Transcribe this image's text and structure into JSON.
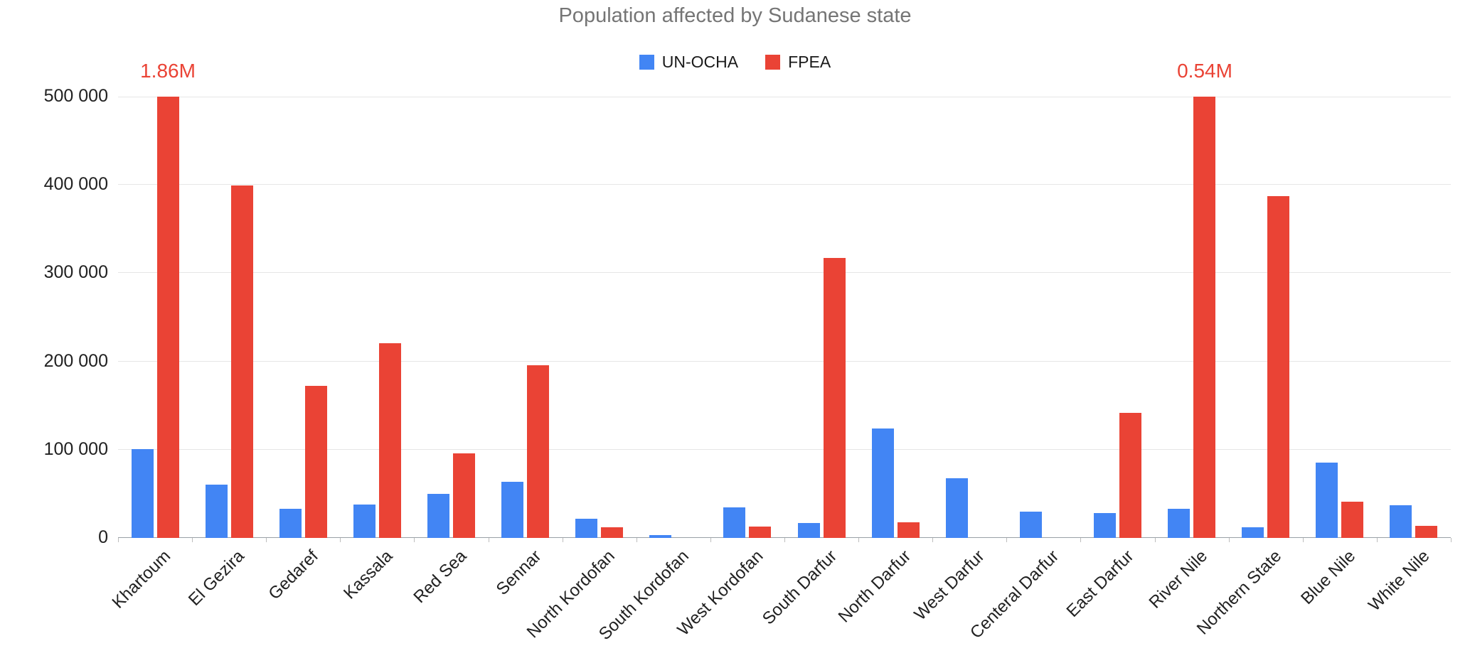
{
  "chart_data": {
    "type": "bar",
    "title": "Population affected by Sudanese state",
    "categories": [
      "Khartoum",
      "El Gezira",
      "Gedaref",
      "Kassala",
      "Red Sea",
      "Sennar",
      "North Kordofan",
      "South Kordofan",
      "West Kordofan",
      "South Darfur",
      "North Darfur",
      "West Darfur",
      "Centeral Darfur",
      "East Darfur",
      "River Nile",
      "Northern State",
      "Blue Nile",
      "White Nile"
    ],
    "series": [
      {
        "name": "UN-OCHA",
        "color": "#4285F4",
        "values": [
          101000,
          60000,
          33000,
          38000,
          50000,
          64000,
          22000,
          3000,
          35000,
          17000,
          124000,
          68000,
          30000,
          28000,
          33000,
          12000,
          85000,
          37000
        ]
      },
      {
        "name": "FPEA",
        "color": "#EA4335",
        "values": [
          1860000,
          399000,
          172000,
          221000,
          96000,
          196000,
          12000,
          0,
          13000,
          317000,
          18000,
          0,
          0,
          142000,
          540000,
          387000,
          41000,
          14000
        ]
      }
    ],
    "annotations": [
      {
        "category": "Khartoum",
        "series": "FPEA",
        "label": "1.86M"
      },
      {
        "category": "River Nile",
        "series": "FPEA",
        "label": "0.54M"
      }
    ],
    "ylim": [
      0,
      500000
    ],
    "yticks": [
      0,
      100000,
      200000,
      300000,
      400000,
      500000
    ],
    "ytick_labels": [
      "0",
      "100 000",
      "200 000",
      "300 000",
      "400 000",
      "500 000"
    ],
    "grid": true,
    "legend_position": "top"
  }
}
